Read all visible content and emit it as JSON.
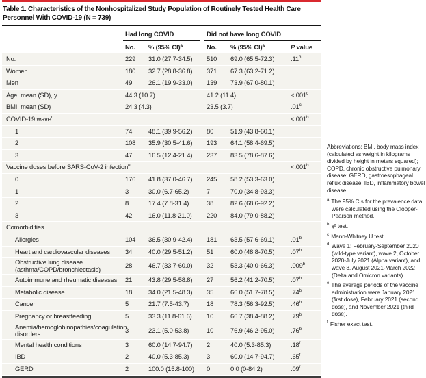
{
  "colors": {
    "accent_red": "#d9292f",
    "row_bg": "#f4f3ee",
    "rule_dark": "#151515"
  },
  "table": {
    "title": "Table 1. Characteristics of the Nonhospitalized Study Population of Routinely Tested Health Care Personnel With COVID-19 (N = 739)",
    "groups": [
      {
        "label": "Had long COVID"
      },
      {
        "label": "Did not have long COVID"
      }
    ],
    "col_headers": {
      "no1": "No.",
      "pct1": "% (95% CI)",
      "pct1_sup": "a",
      "no2": "No.",
      "pct2": "% (95% CI)",
      "pct2_sup": "a",
      "p_italic": "P",
      "p_rest": "value"
    },
    "rows": [
      {
        "label": "No.",
        "no1": "229",
        "pct1": "31.0 (27.7-34.5)",
        "no2": "510",
        "pct2": "69.0 (65.5-72.3)",
        "p": ".11",
        "p_sup": "b"
      },
      {
        "label": "Women",
        "no1": "180",
        "pct1": "32.7 (28.8-36.8)",
        "no2": "371",
        "pct2": "67.3 (63.2-71.2)"
      },
      {
        "label": "Men",
        "no1": "49",
        "pct1": "26.1 (19.9-33.0)",
        "no2": "139",
        "pct2": "73.9 (67.0-80.1)"
      },
      {
        "label": "Age, mean (SD), y",
        "span": true,
        "v1": "44.3 (10.7)",
        "v2": "41.2 (11.4)",
        "p": "<.001",
        "p_sup": "c"
      },
      {
        "label": "BMI, mean (SD)",
        "span": true,
        "v1": "24.3 (4.3)",
        "v2": "23.5 (3.7)",
        "p": ".01",
        "p_sup": "c"
      },
      {
        "label": "COVID-19 wave",
        "label_sup": "d",
        "section": true,
        "p": "<.001",
        "p_sup": "b"
      },
      {
        "label": "1",
        "indent": true,
        "no1": "74",
        "pct1": "48.1 (39.9-56.2)",
        "no2": "80",
        "pct2": "51.9 (43.8-60.1)"
      },
      {
        "label": "2",
        "indent": true,
        "no1": "108",
        "pct1": "35.9 (30.5-41.6)",
        "no2": "193",
        "pct2": "64.1 (58.4-69.5)"
      },
      {
        "label": "3",
        "indent": true,
        "no1": "47",
        "pct1": "16.5 (12.4-21.4)",
        "no2": "237",
        "pct2": "83.5 (78.6-87.6)"
      },
      {
        "label": "Vaccine doses before SARS-CoV-2 infection",
        "label_sup": "e",
        "section": true,
        "p": "<.001",
        "p_sup": "b"
      },
      {
        "label": "0",
        "indent": true,
        "no1": "176",
        "pct1": "41.8 (37.0-46.7)",
        "no2": "245",
        "pct2": "58.2 (53.3-63.0)"
      },
      {
        "label": "1",
        "indent": true,
        "no1": "3",
        "pct1": "30.0 (6.7-65.2)",
        "no2": "7",
        "pct2": "70.0 (34.8-93.3)"
      },
      {
        "label": "2",
        "indent": true,
        "no1": "8",
        "pct1": "17.4 (7.8-31.4)",
        "no2": "38",
        "pct2": "82.6 (68.6-92.2)"
      },
      {
        "label": "3",
        "indent": true,
        "no1": "42",
        "pct1": "16.0 (11.8-21.0)",
        "no2": "220",
        "pct2": "84.0 (79.0-88.2)"
      },
      {
        "label": "Comorbidities",
        "section": true
      },
      {
        "label": "Allergies",
        "indent": true,
        "no1": "104",
        "pct1": "36.5 (30.9-42.4)",
        "no2": "181",
        "pct2": "63.5 (57.6-69.1)",
        "p": ".01",
        "p_sup": "b"
      },
      {
        "label": "Heart and cardiovascular diseases",
        "indent": true,
        "no1": "34",
        "pct1": "40.0 (29.5-51.2)",
        "no2": "51",
        "pct2": "60.0 (48.8-70.5)",
        "p": ".07",
        "p_sup": "b"
      },
      {
        "label": "Obstructive lung disease (asthma/COPD/bronchiectasis)",
        "indent": true,
        "no1": "28",
        "pct1": "46.7 (33.7-60.0)",
        "no2": "32",
        "pct2": "53.3 (40.0-66.3)",
        "p": ".009",
        "p_sup": "b"
      },
      {
        "label": "Autoimmune and rheumatic diseases",
        "indent": true,
        "no1": "21",
        "pct1": "43.8 (29.5-58.8)",
        "no2": "27",
        "pct2": "56.2 (41.2-70.5)",
        "p": ".07",
        "p_sup": "b"
      },
      {
        "label": "Metabolic disease",
        "indent": true,
        "no1": "18",
        "pct1": "34.0 (21.5-48.3)",
        "no2": "35",
        "pct2": "66.0 (51.7-78.5)",
        "p": ".74",
        "p_sup": "b"
      },
      {
        "label": "Cancer",
        "indent": true,
        "no1": "5",
        "pct1": "21.7 (7.5-43.7)",
        "no2": "18",
        "pct2": "78.3 (56.3-92.5)",
        "p": ".46",
        "p_sup": "b"
      },
      {
        "label": "Pregnancy or breastfeeding",
        "indent": true,
        "no1": "5",
        "pct1": "33.3 (11.8-61.6)",
        "no2": "10",
        "pct2": "66.7 (38.4-88.2)",
        "p": ".79",
        "p_sup": "b"
      },
      {
        "label": "Anemia/hemoglobinopathies/coagulation disorders",
        "indent": true,
        "no1": "3",
        "pct1": "23.1 (5.0-53.8)",
        "no2": "10",
        "pct2": "76.9 (46.2-95.0)",
        "p": ".76",
        "p_sup": "b"
      },
      {
        "label": "Mental health conditions",
        "indent": true,
        "no1": "3",
        "pct1": "60.0 (14.7-94.7)",
        "no2": "2",
        "pct2": "40.0 (5.3-85.3)",
        "p": ".18",
        "p_sup": "f"
      },
      {
        "label": "IBD",
        "indent": true,
        "no1": "2",
        "pct1": "40.0 (5.3-85.3)",
        "no2": "3",
        "pct2": "60.0 (14.7-94.7)",
        "p": ".65",
        "p_sup": "f"
      },
      {
        "label": "GERD",
        "indent": true,
        "no1": "2",
        "pct1": "100.0 (15.8-100)",
        "no2": "0",
        "pct2": "0.0 (0-84.2)",
        "p": ".09",
        "p_sup": "f"
      }
    ]
  },
  "footnotes": {
    "abbreviations": "Abbreviations: BMI, body mass index (calculated as weight in kilograms divided by height in meters squared); COPD, chronic obstructive pulmonary disease; GERD, gastroesophageal reflux disease; IBD, inflammatory bowel disease.",
    "items": [
      {
        "marker": "a",
        "text": "The 95% CIs for the prevalence data were calculated using the Clopper-Pearson method."
      },
      {
        "marker": "b",
        "text": "χ² test."
      },
      {
        "marker": "c",
        "text": "Mann-Whitney U test."
      },
      {
        "marker": "d",
        "text": "Wave 1: February-September 2020 (wild-type variant), wave 2, October 2020-July 2021 (Alpha variant), and wave 3, August 2021-March 2022 (Delta and Omicron variants)."
      },
      {
        "marker": "e",
        "text": "The average periods of the vaccine administration were January 2021 (first dose), February 2021 (second dose), and November 2021 (third dose)."
      },
      {
        "marker": "f",
        "text": "Fisher exact test."
      }
    ]
  }
}
